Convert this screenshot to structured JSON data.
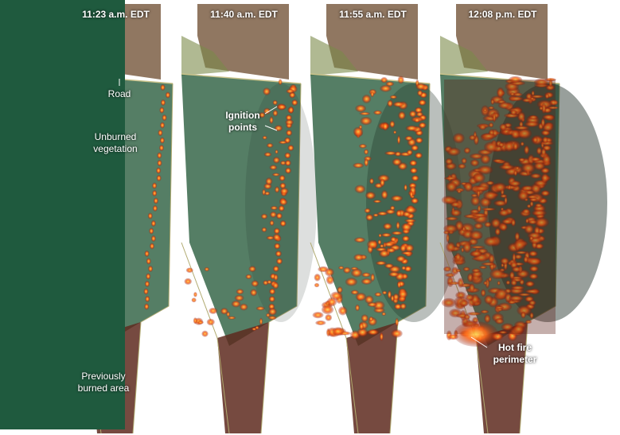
{
  "panels": [
    {
      "time": "11:23 a.m. EDT",
      "labels": [
        "Road",
        "Unburned vegetation",
        "Previously burned area"
      ]
    },
    {
      "time": "11:40 a.m. EDT",
      "labels": [
        "Ignition points"
      ]
    },
    {
      "time": "11:55 a.m. EDT",
      "labels": []
    },
    {
      "time": "12:08 p.m. EDT",
      "labels": [
        "Hot fire perimeter"
      ]
    }
  ]
}
